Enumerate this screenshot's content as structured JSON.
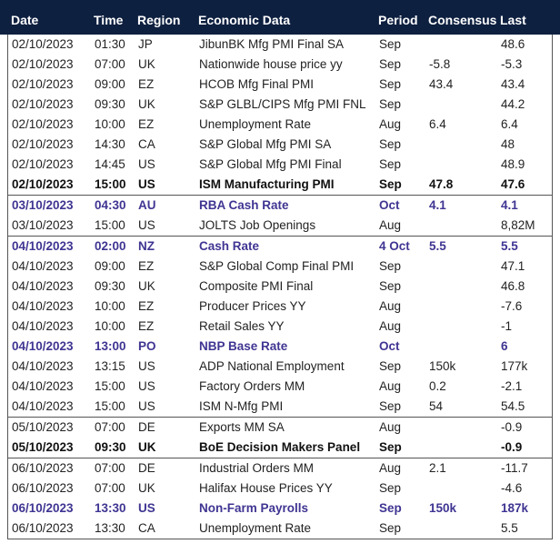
{
  "table": {
    "columns": [
      "Date",
      "Time",
      "Region",
      "Economic Data",
      "Period",
      "Consensus",
      "Last"
    ],
    "groups": [
      {
        "rows": [
          {
            "cells": [
              "02/10/2023",
              "01:30",
              "JP",
              "JibunBK Mfg PMI Final SA",
              "Sep",
              null,
              "48.6"
            ],
            "emphasis": "none"
          },
          {
            "cells": [
              "02/10/2023",
              "07:00",
              "UK",
              "Nationwide house price yy",
              "Sep",
              "-5.8",
              "-5.3"
            ],
            "emphasis": "none"
          },
          {
            "cells": [
              "02/10/2023",
              "09:00",
              "EZ",
              "HCOB Mfg Final PMI",
              "Sep",
              "43.4",
              "43.4"
            ],
            "emphasis": "none"
          },
          {
            "cells": [
              "02/10/2023",
              "09:30",
              "UK",
              "S&P GLBL/CIPS Mfg PMI FNL",
              "Sep",
              null,
              "44.2"
            ],
            "emphasis": "none"
          },
          {
            "cells": [
              "02/10/2023",
              "10:00",
              "EZ",
              "Unemployment Rate",
              "Aug",
              "6.4",
              "6.4"
            ],
            "emphasis": "none"
          },
          {
            "cells": [
              "02/10/2023",
              "14:30",
              "CA",
              "S&P Global Mfg PMI SA",
              "Sep",
              null,
              "48"
            ],
            "emphasis": "none"
          },
          {
            "cells": [
              "02/10/2023",
              "14:45",
              "US",
              "S&P Global Mfg PMI Final",
              "Sep",
              null,
              "48.9"
            ],
            "emphasis": "none"
          },
          {
            "cells": [
              "02/10/2023",
              "15:00",
              "US",
              "ISM Manufacturing PMI",
              "Sep",
              "47.8",
              "47.6"
            ],
            "emphasis": "bold"
          }
        ]
      },
      {
        "rows": [
          {
            "cells": [
              "03/10/2023",
              "04:30",
              "AU",
              "RBA Cash Rate",
              "Oct",
              "4.1",
              "4.1"
            ],
            "emphasis": "purple"
          },
          {
            "cells": [
              "03/10/2023",
              "15:00",
              "US",
              "JOLTS Job Openings",
              "Aug",
              null,
              "8,82M"
            ],
            "emphasis": "none"
          }
        ]
      },
      {
        "rows": [
          {
            "cells": [
              "04/10/2023",
              "02:00",
              "NZ",
              "Cash Rate",
              "4 Oct",
              "5.5",
              "5.5"
            ],
            "emphasis": "purple"
          },
          {
            "cells": [
              "04/10/2023",
              "09:00",
              "EZ",
              "S&P Global Comp Final PMI",
              "Sep",
              null,
              "47.1"
            ],
            "emphasis": "none"
          },
          {
            "cells": [
              "04/10/2023",
              "09:30",
              "UK",
              "Composite PMI Final",
              "Sep",
              null,
              "46.8"
            ],
            "emphasis": "none"
          },
          {
            "cells": [
              "04/10/2023",
              "10:00",
              "EZ",
              "Producer Prices YY",
              "Aug",
              null,
              "-7.6"
            ],
            "emphasis": "none"
          },
          {
            "cells": [
              "04/10/2023",
              "10:00",
              "EZ",
              "Retail Sales YY",
              "Aug",
              null,
              "-1"
            ],
            "emphasis": "none"
          },
          {
            "cells": [
              "04/10/2023",
              "13:00",
              "PO",
              "NBP Base Rate",
              "Oct",
              null,
              "6"
            ],
            "emphasis": "purple"
          },
          {
            "cells": [
              "04/10/2023",
              "13:15",
              "US",
              "ADP National Employment",
              "Sep",
              "150k",
              "177k"
            ],
            "emphasis": "none"
          },
          {
            "cells": [
              "04/10/2023",
              "15:00",
              "US",
              "Factory Orders MM",
              "Aug",
              "0.2",
              "-2.1"
            ],
            "emphasis": "none"
          },
          {
            "cells": [
              "04/10/2023",
              "15:00",
              "US",
              "ISM N-Mfg PMI",
              "Sep",
              "54",
              "54.5"
            ],
            "emphasis": "none"
          }
        ]
      },
      {
        "rows": [
          {
            "cells": [
              "05/10/2023",
              "07:00",
              "DE",
              "Exports MM SA",
              "Aug",
              null,
              "-0.9"
            ],
            "emphasis": "none"
          },
          {
            "cells": [
              "05/10/2023",
              "09:30",
              "UK",
              "BoE Decision Makers Panel",
              "Sep",
              null,
              "-0.9"
            ],
            "emphasis": "bold"
          }
        ]
      },
      {
        "rows": [
          {
            "cells": [
              "06/10/2023",
              "07:00",
              "DE",
              "Industrial Orders MM",
              "Aug",
              "2.1",
              "-11.7"
            ],
            "emphasis": "none"
          },
          {
            "cells": [
              "06/10/2023",
              "07:00",
              "UK",
              "Halifax House Prices YY",
              "Sep",
              null,
              "-4.6"
            ],
            "emphasis": "none"
          },
          {
            "cells": [
              "06/10/2023",
              "13:30",
              "US",
              "Non-Farm Payrolls",
              "Sep",
              "150k",
              "187k"
            ],
            "emphasis": "purple"
          },
          {
            "cells": [
              "06/10/2023",
              "13:30",
              "CA",
              "Unemployment Rate",
              "Sep",
              null,
              "5.5"
            ],
            "emphasis": "none"
          }
        ]
      }
    ]
  }
}
